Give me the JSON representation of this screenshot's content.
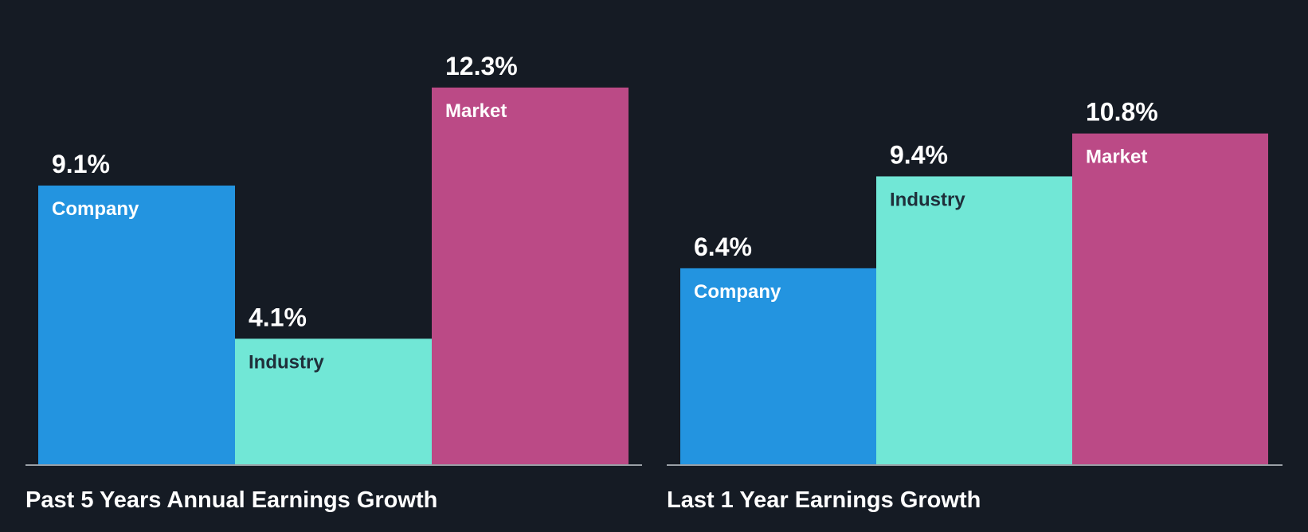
{
  "colors": {
    "background": "#151b24",
    "company": "#2394e0",
    "industry": "#71e7d6",
    "market": "#bb4a86",
    "label_on_company": "#ffffff",
    "label_on_industry": "#1f2f3a",
    "label_on_market": "#ffffff",
    "axis": "#9aa0a6"
  },
  "chart_data": [
    {
      "type": "bar",
      "title": "Past 5 Years Annual Earnings Growth",
      "categories": [
        "Company",
        "Industry",
        "Market"
      ],
      "values": [
        9.1,
        4.1,
        12.3
      ],
      "value_labels": [
        "9.1%",
        "4.1%",
        "12.3%"
      ],
      "unit": "%",
      "ylim": [
        0,
        13.0
      ],
      "grid": false,
      "legend": "none"
    },
    {
      "type": "bar",
      "title": "Last 1 Year Earnings Growth",
      "categories": [
        "Company",
        "Industry",
        "Market"
      ],
      "values": [
        6.4,
        9.4,
        10.8
      ],
      "value_labels": [
        "6.4%",
        "9.4%",
        "10.8%"
      ],
      "unit": "%",
      "ylim": [
        0,
        13.0
      ],
      "grid": false,
      "legend": "none"
    }
  ]
}
